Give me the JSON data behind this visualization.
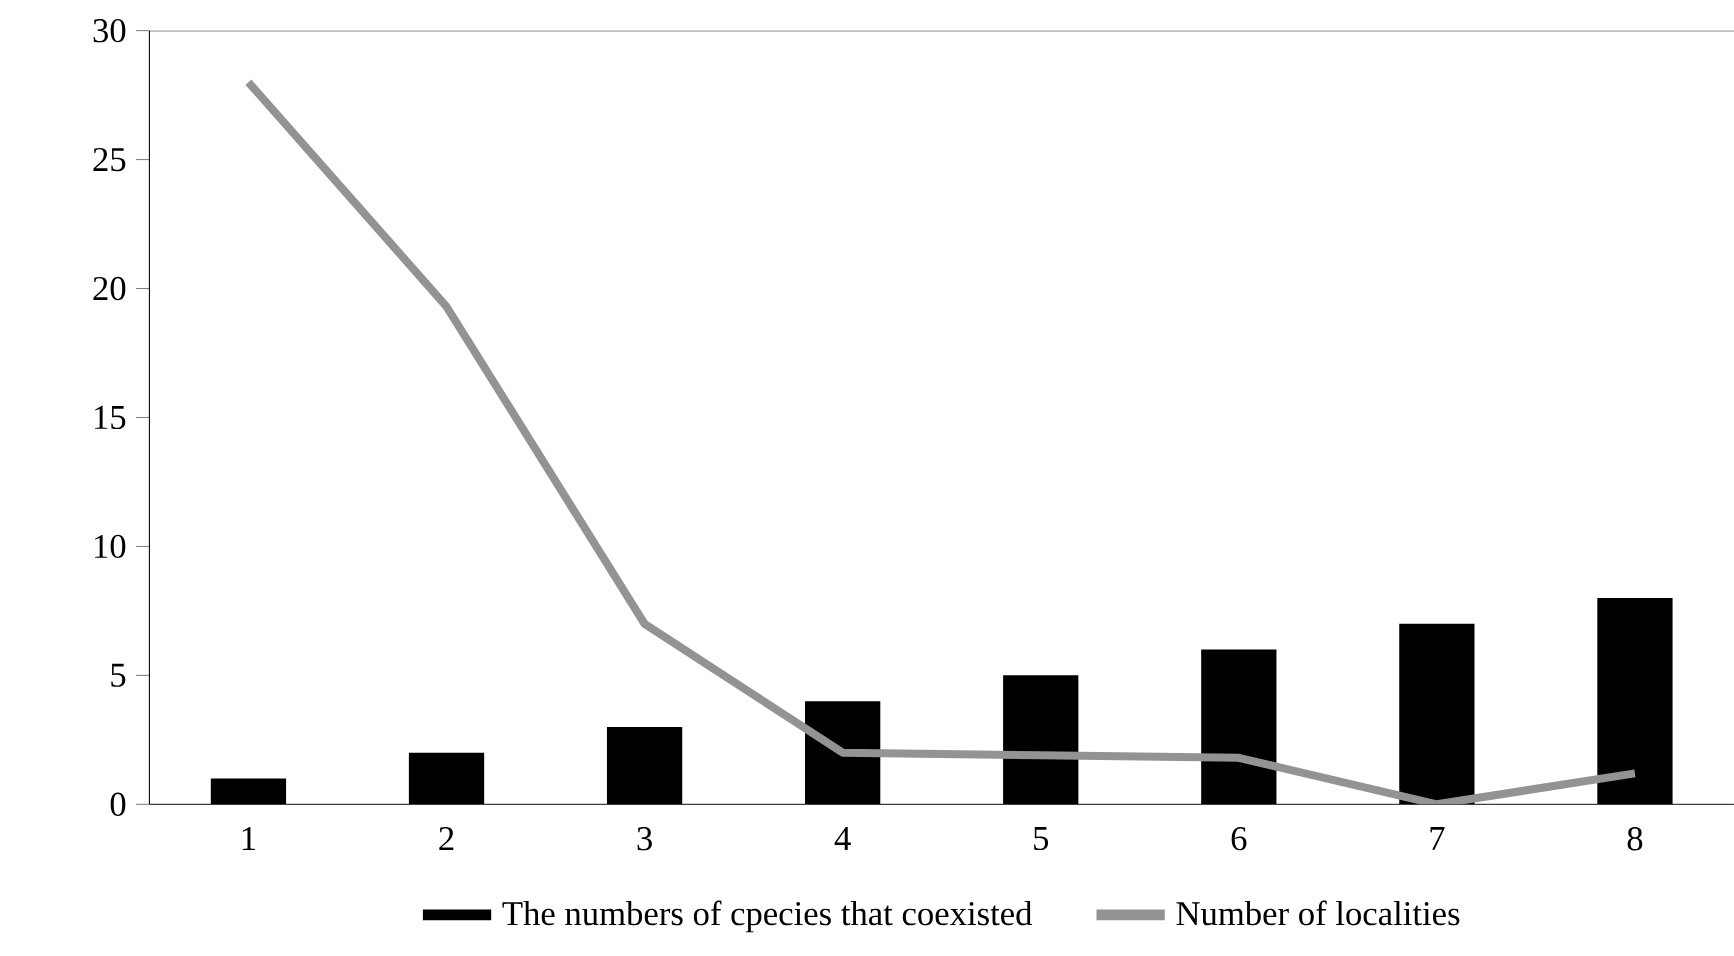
{
  "chart_data": {
    "type": "bar",
    "categories": [
      "1",
      "2",
      "3",
      "4",
      "5",
      "6",
      "7",
      "8"
    ],
    "series": [
      {
        "name": "The numbers of cpecies that coexisted",
        "color": "#000000",
        "values": [
          1,
          2,
          3,
          4,
          5,
          6,
          7,
          8
        ]
      },
      {
        "name": "Number of localities",
        "type": "line",
        "color": "#939393",
        "values": [
          28,
          19.3,
          7,
          2,
          1.9,
          1.8,
          0,
          1.2
        ]
      }
    ],
    "ylim": [
      0,
      30
    ],
    "yticks": [
      0,
      5,
      10,
      15,
      20,
      25,
      30
    ],
    "legend": "bottom",
    "grid": false,
    "marker": "none",
    "line_style": "solid"
  }
}
